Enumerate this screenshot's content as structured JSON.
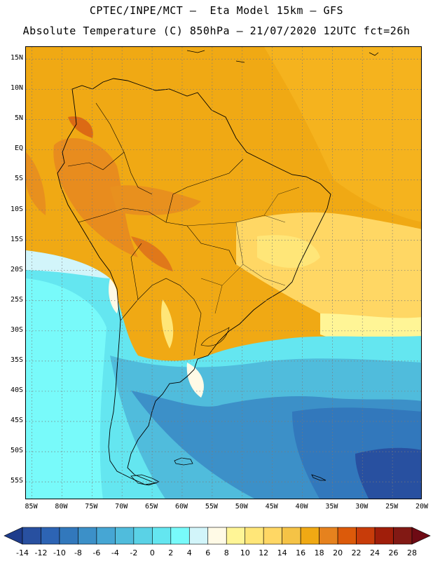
{
  "title_line1": "CPTEC/INPE/MCT –  Eta Model 15km – GFS",
  "title_line2": "Absolute Temperature (C) 850hPa – 21/07/2020 12UTC fct=26h",
  "map": {
    "lat_labels": [
      "15N",
      "10N",
      "5N",
      "EQ",
      "5S",
      "10S",
      "15S",
      "20S",
      "25S",
      "30S",
      "35S",
      "40S",
      "45S",
      "50S",
      "55S"
    ],
    "lon_labels": [
      "85W",
      "80W",
      "75W",
      "70W",
      "65W",
      "60W",
      "55W",
      "50W",
      "45W",
      "40W",
      "35W",
      "30W",
      "25W",
      "20W"
    ],
    "lat_range": [
      17,
      -58
    ],
    "lon_range": [
      -86,
      -20
    ],
    "gridlines": "dotted"
  },
  "colorbar": {
    "levels": [
      "-14",
      "-12",
      "-10",
      "-8",
      "-6",
      "-4",
      "-2",
      "0",
      "2",
      "4",
      "6",
      "8",
      "10",
      "12",
      "14",
      "16",
      "18",
      "20",
      "22",
      "24",
      "26",
      "28"
    ],
    "colors": [
      "#1e3c8c",
      "#2850a0",
      "#2d64b4",
      "#3278bc",
      "#3c90c8",
      "#46a6d4",
      "#50bcdc",
      "#5ad2e6",
      "#64e6f0",
      "#78fafa",
      "#d2f5fa",
      "#fffae6",
      "#fff596",
      "#ffe678",
      "#ffd764",
      "#f5c346",
      "#f0a914",
      "#e6821e",
      "#dc5a0a",
      "#c83c0a",
      "#a01e0a",
      "#821914",
      "#6e0a14"
    ]
  }
}
